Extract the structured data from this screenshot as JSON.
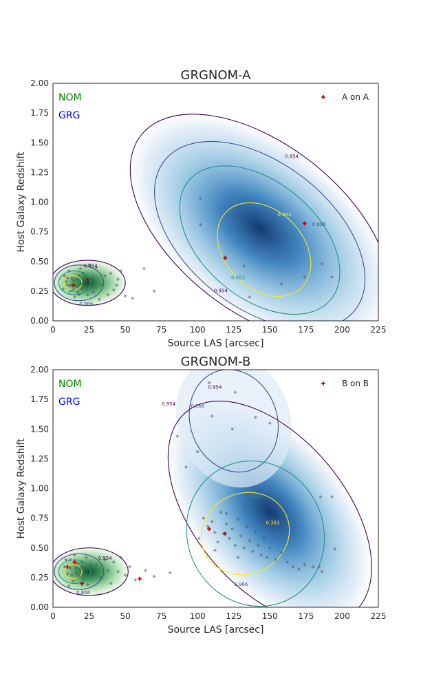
{
  "chart_data": [
    {
      "type": "scatter",
      "title": "GRGNOM-A",
      "xlabel": "Source LAS [arcsec]",
      "ylabel": "Host Galaxy Redshift",
      "xlim": [
        0,
        225
      ],
      "ylim": [
        0,
        2.0
      ],
      "xticks": [
        "0",
        "25",
        "50",
        "75",
        "100",
        "125",
        "150",
        "175",
        "200",
        "225"
      ],
      "yticks": [
        "0.00",
        "0.25",
        "0.50",
        "0.75",
        "1.00",
        "1.25",
        "1.50",
        "1.75",
        "2.00"
      ],
      "annotations": [
        {
          "text": "NOM",
          "color": "#008000"
        },
        {
          "text": "GRG",
          "color": "#0000ff"
        }
      ],
      "legend": {
        "label": "A on A",
        "location": "upper-right",
        "marker_color": "#cc0000"
      },
      "contour_labels": [
        "0.954",
        "0.866",
        "0.683",
        "0.383"
      ],
      "density": {
        "GRG": {
          "color_map": "Blues",
          "center": [
            145,
            0.58
          ]
        },
        "NOM": {
          "color_map": "Greens",
          "center": [
            15,
            0.32
          ]
        }
      },
      "nom_points": [
        [
          8,
          0.38
        ],
        [
          10,
          0.3
        ],
        [
          12,
          0.25
        ],
        [
          14,
          0.34
        ],
        [
          16,
          0.29
        ],
        [
          18,
          0.38
        ],
        [
          20,
          0.27
        ],
        [
          22,
          0.33
        ],
        [
          24,
          0.22
        ],
        [
          26,
          0.31
        ],
        [
          11,
          0.42
        ],
        [
          15,
          0.2
        ],
        [
          19,
          0.44
        ],
        [
          13,
          0.36
        ],
        [
          17,
          0.24
        ],
        [
          21,
          0.4
        ],
        [
          9,
          0.33
        ],
        [
          23,
          0.28
        ],
        [
          27,
          0.36
        ],
        [
          28,
          0.24
        ],
        [
          30,
          0.45
        ],
        [
          33,
          0.3
        ],
        [
          36,
          0.38
        ],
        [
          38,
          0.22
        ],
        [
          40,
          0.4
        ],
        [
          42,
          0.26
        ],
        [
          45,
          0.35
        ],
        [
          47,
          0.42
        ],
        [
          50,
          0.21
        ],
        [
          55,
          0.19
        ],
        [
          63,
          0.44
        ],
        [
          70,
          0.25
        ],
        [
          7,
          0.27
        ],
        [
          25,
          0.47
        ],
        [
          32,
          0.18
        ],
        [
          44,
          0.3
        ],
        [
          12,
          0.3
        ],
        [
          16,
          0.35
        ],
        [
          20,
          0.31
        ],
        [
          14,
          0.26
        ],
        [
          18,
          0.22
        ],
        [
          10,
          0.36
        ],
        [
          22,
          0.37
        ]
      ],
      "grg_points": [
        [
          102,
          1.03
        ],
        [
          102,
          0.81
        ],
        [
          119,
          0.53
        ],
        [
          126,
          0.87
        ],
        [
          132,
          0.46
        ],
        [
          136,
          0.2
        ],
        [
          142,
          0.62
        ],
        [
          144,
          0.69
        ],
        [
          158,
          0.31
        ],
        [
          174,
          0.37
        ],
        [
          186,
          0.48
        ],
        [
          193,
          0.37
        ],
        [
          174,
          0.82
        ]
      ],
      "highlight_points": [
        [
          119,
          0.53
        ],
        [
          174,
          0.82
        ],
        [
          14,
          0.3
        ],
        [
          24,
          0.35
        ]
      ]
    },
    {
      "type": "scatter",
      "title": "GRGNOM-B",
      "xlabel": "Source LAS [arcsec]",
      "ylabel": "Host Galaxy Redshift",
      "xlim": [
        0,
        225
      ],
      "ylim": [
        0,
        2.0
      ],
      "xticks": [
        "0",
        "25",
        "50",
        "75",
        "100",
        "125",
        "150",
        "175",
        "200",
        "225"
      ],
      "yticks": [
        "0.00",
        "0.25",
        "0.50",
        "0.75",
        "1.00",
        "1.25",
        "1.50",
        "1.75",
        "2.00"
      ],
      "annotations": [
        {
          "text": "NOM",
          "color": "#008000"
        },
        {
          "text": "GRG",
          "color": "#0000ff"
        }
      ],
      "legend": {
        "label": "B on B",
        "location": "upper-right",
        "marker_color": "#cc0000"
      },
      "contour_labels": [
        "0.954",
        "0.866",
        "0.683",
        "0.383"
      ],
      "density": {
        "GRG": {
          "color_map": "Blues",
          "center": [
            125,
            0.62
          ]
        },
        "NOM": {
          "color_map": "Greens",
          "center": [
            15,
            0.3
          ]
        }
      },
      "nom_points": [
        [
          8,
          0.34
        ],
        [
          10,
          0.28
        ],
        [
          12,
          0.4
        ],
        [
          14,
          0.22
        ],
        [
          16,
          0.33
        ],
        [
          18,
          0.26
        ],
        [
          20,
          0.38
        ],
        [
          22,
          0.3
        ],
        [
          24,
          0.19
        ],
        [
          26,
          0.35
        ],
        [
          11,
          0.18
        ],
        [
          15,
          0.44
        ],
        [
          19,
          0.32
        ],
        [
          13,
          0.27
        ],
        [
          17,
          0.37
        ],
        [
          21,
          0.24
        ],
        [
          9,
          0.4
        ],
        [
          23,
          0.42
        ],
        [
          27,
          0.28
        ],
        [
          30,
          0.36
        ],
        [
          33,
          0.25
        ],
        [
          36,
          0.4
        ],
        [
          38,
          0.31
        ],
        [
          40,
          0.2
        ],
        [
          42,
          0.38
        ],
        [
          45,
          0.3
        ],
        [
          47,
          0.42
        ],
        [
          50,
          0.27
        ],
        [
          53,
          0.34
        ],
        [
          57,
          0.23
        ],
        [
          64,
          0.31
        ],
        [
          70,
          0.26
        ],
        [
          81,
          0.29
        ],
        [
          12,
          0.33
        ],
        [
          16,
          0.29
        ],
        [
          20,
          0.34
        ]
      ],
      "grg_points": [
        [
          100,
          1.31
        ],
        [
          108,
          1.89
        ],
        [
          110,
          1.61
        ],
        [
          124,
          1.5
        ],
        [
          126,
          1.81
        ],
        [
          140,
          1.6
        ],
        [
          150,
          1.55
        ],
        [
          86,
          1.44
        ],
        [
          92,
          1.18
        ],
        [
          104,
          0.75
        ],
        [
          107,
          0.68
        ],
        [
          110,
          0.72
        ],
        [
          112,
          0.63
        ],
        [
          114,
          0.55
        ],
        [
          116,
          0.8
        ],
        [
          118,
          0.62
        ],
        [
          120,
          0.7
        ],
        [
          122,
          0.58
        ],
        [
          124,
          0.66
        ],
        [
          126,
          0.52
        ],
        [
          128,
          0.74
        ],
        [
          130,
          0.6
        ],
        [
          132,
          0.5
        ],
        [
          134,
          0.68
        ],
        [
          136,
          0.56
        ],
        [
          138,
          0.47
        ],
        [
          140,
          0.64
        ],
        [
          142,
          0.52
        ],
        [
          144,
          0.44
        ],
        [
          146,
          0.58
        ],
        [
          148,
          0.42
        ],
        [
          150,
          0.5
        ],
        [
          154,
          0.4
        ],
        [
          158,
          0.46
        ],
        [
          162,
          0.38
        ],
        [
          166,
          0.34
        ],
        [
          170,
          0.32
        ],
        [
          174,
          0.36
        ],
        [
          180,
          0.34
        ],
        [
          184,
          0.34
        ],
        [
          185,
          0.93
        ],
        [
          193,
          0.93
        ],
        [
          195,
          0.49
        ],
        [
          186,
          0.3
        ],
        [
          120,
          0.79
        ],
        [
          133,
          0.85
        ],
        [
          101,
          0.58
        ],
        [
          112,
          0.48
        ],
        [
          128,
          0.42
        ],
        [
          152,
          0.74
        ]
      ],
      "highlight_points": [
        [
          10,
          0.34
        ],
        [
          15,
          0.38
        ],
        [
          20,
          0.2
        ],
        [
          60,
          0.24
        ],
        [
          108,
          0.66
        ],
        [
          119,
          0.62
        ]
      ]
    }
  ]
}
